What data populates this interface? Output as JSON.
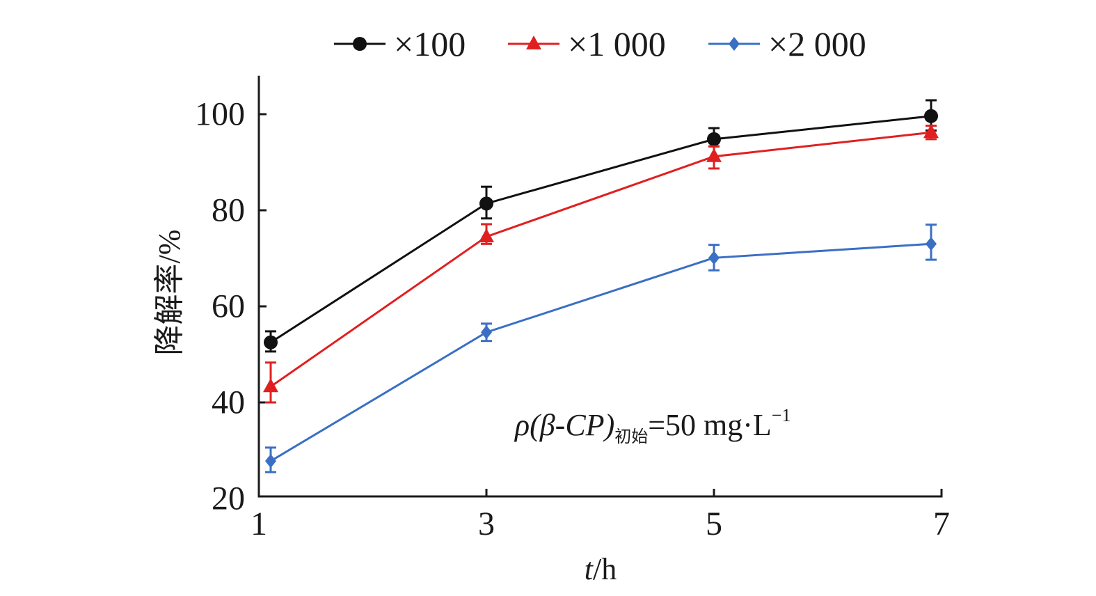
{
  "chart_data": {
    "type": "line",
    "title": "",
    "xlabel_italic": "t",
    "xlabel_rest": "/h",
    "ylabel": "降解率/%",
    "x": [
      1,
      3,
      5,
      7
    ],
    "x_ticks": [
      "1",
      "3",
      "5",
      "7"
    ],
    "y_ticks": [
      "20",
      "40",
      "60",
      "80",
      "100"
    ],
    "y_tick_values": [
      20,
      40,
      60,
      80,
      100
    ],
    "xlim": [
      1,
      7
    ],
    "ylim": [
      20,
      108
    ],
    "grid": false,
    "legend_position": "top-center",
    "series": [
      {
        "name": "×100",
        "color": "#111111",
        "marker": "circle",
        "values": [
          52.5,
          81.4,
          94.8,
          99.6
        ],
        "err_upper": [
          54.8,
          84.9,
          97.1,
          102.9
        ],
        "err_lower": [
          50.6,
          78.3,
          93.3,
          96.6
        ]
      },
      {
        "name": "×1 000",
        "color": "#e02020",
        "marker": "triangle",
        "values": [
          43.3,
          74.5,
          91.2,
          96.2
        ],
        "err_upper": [
          48.3,
          77.1,
          93.3,
          97.6
        ],
        "err_lower": [
          40.0,
          73.0,
          88.7,
          94.8
        ]
      },
      {
        "name": "×2 000",
        "color": "#3a6fc4",
        "marker": "diamond",
        "values": [
          27.8,
          54.6,
          70.1,
          73.0
        ],
        "err_upper": [
          30.6,
          56.4,
          72.8,
          77.0
        ],
        "err_lower": [
          25.5,
          52.8,
          67.5,
          69.7
        ]
      }
    ],
    "annotation": {
      "main": "ρ(β-CP)",
      "subscript": "初始",
      "rest": "=50 mg·L",
      "superscript": "−1"
    }
  }
}
